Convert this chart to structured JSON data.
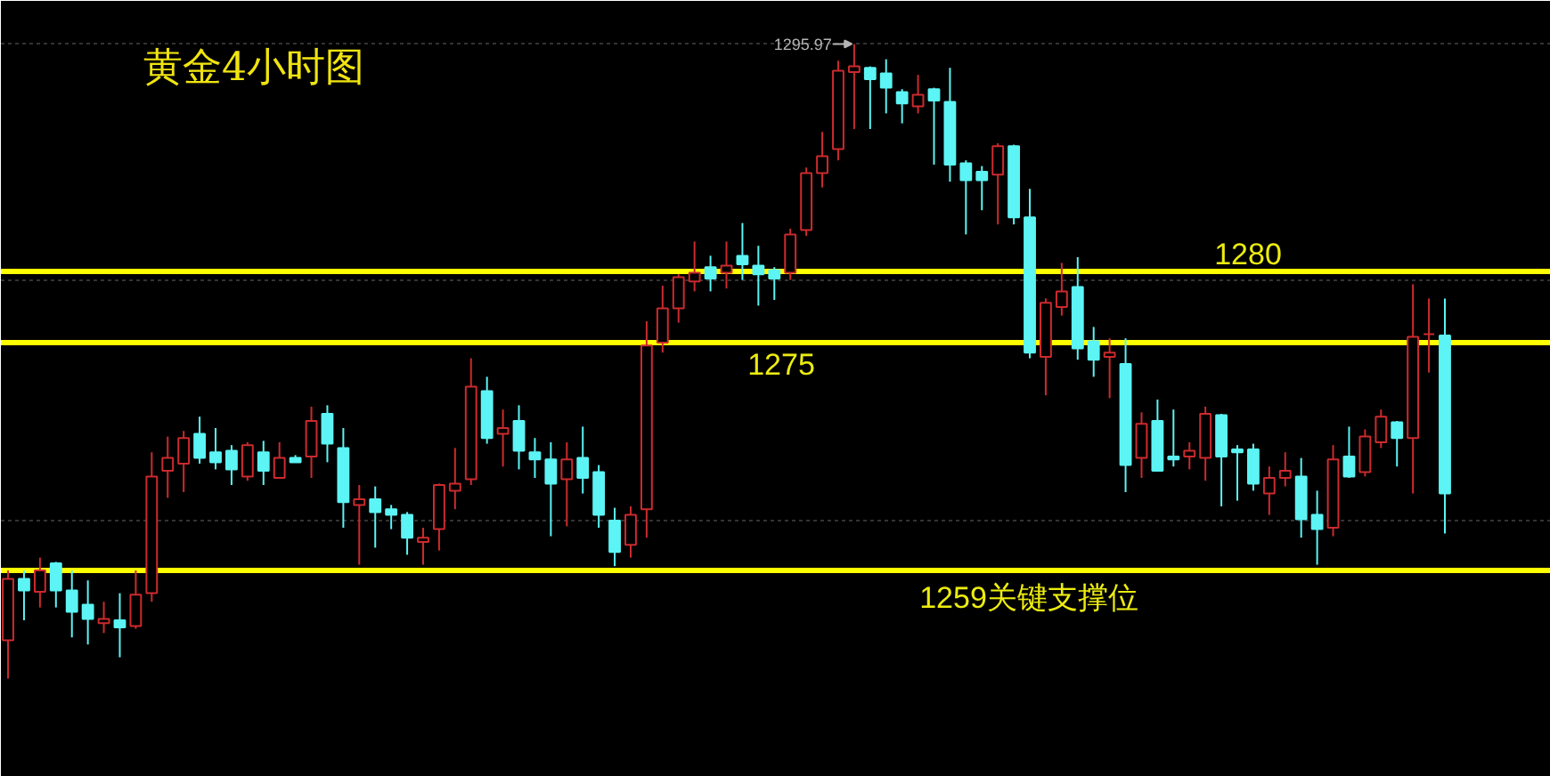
{
  "chart_data": {
    "type": "candlestick",
    "title": "黄金4小时图",
    "categories": [
      null,
      null,
      null,
      null,
      null,
      null,
      null,
      null,
      null,
      null,
      null,
      null,
      null,
      null,
      null,
      null,
      null,
      null,
      null,
      null,
      null,
      null,
      null,
      null,
      null,
      null,
      null,
      null,
      null,
      null,
      null,
      null,
      null,
      null,
      null,
      null,
      null,
      null,
      null,
      null,
      null,
      null,
      null,
      null,
      null,
      null,
      null,
      null,
      null,
      null,
      null,
      null,
      null,
      null,
      null,
      null,
      null,
      null,
      null,
      null,
      null,
      null,
      null,
      null,
      null,
      null,
      null,
      null,
      null,
      null,
      null,
      null,
      null,
      null,
      null,
      null,
      null,
      null,
      null,
      null,
      null,
      null,
      null,
      null,
      null,
      null,
      null,
      null,
      null,
      null,
      null
    ],
    "ohlc": [
      [
        1254.1,
        1259.0,
        1251.4,
        1258.4
      ],
      [
        1258.4,
        1259.0,
        1255.5,
        1257.6
      ],
      [
        1257.5,
        1259.9,
        1256.4,
        1259.0
      ],
      [
        1259.5,
        1259.6,
        1256.4,
        1257.6
      ],
      [
        1257.6,
        1259.0,
        1254.3,
        1256.1
      ],
      [
        1256.6,
        1258.3,
        1253.8,
        1255.6
      ],
      [
        1255.3,
        1256.8,
        1254.6,
        1255.6
      ],
      [
        1255.5,
        1257.4,
        1252.9,
        1255.0
      ],
      [
        1255.1,
        1259.0,
        1254.9,
        1257.3
      ],
      [
        1257.4,
        1267.3,
        1256.8,
        1265.6
      ],
      [
        1266.0,
        1268.4,
        1264.1,
        1266.9
      ],
      [
        1266.5,
        1268.8,
        1264.5,
        1268.3
      ],
      [
        1268.6,
        1269.8,
        1266.5,
        1266.9
      ],
      [
        1267.3,
        1269.0,
        1266.1,
        1266.6
      ],
      [
        1267.4,
        1267.8,
        1265.0,
        1266.1
      ],
      [
        1265.6,
        1268.0,
        1265.3,
        1267.8
      ],
      [
        1267.3,
        1268.1,
        1265.0,
        1266.0
      ],
      [
        1265.5,
        1268.0,
        1265.5,
        1266.9
      ],
      [
        1266.9,
        1267.1,
        1266.6,
        1266.6
      ],
      [
        1267.0,
        1270.5,
        1265.5,
        1269.5
      ],
      [
        1270.0,
        1270.6,
        1266.6,
        1267.9
      ],
      [
        1267.6,
        1269.0,
        1262.0,
        1263.8
      ],
      [
        1263.6,
        1265.0,
        1259.4,
        1264.0
      ],
      [
        1264.0,
        1264.9,
        1260.6,
        1263.1
      ],
      [
        1263.3,
        1263.6,
        1261.9,
        1262.9
      ],
      [
        1262.9,
        1263.1,
        1260.1,
        1261.3
      ],
      [
        1261.0,
        1262.0,
        1259.4,
        1261.3
      ],
      [
        1261.9,
        1265.1,
        1260.4,
        1265.0
      ],
      [
        1264.6,
        1267.6,
        1263.3,
        1265.1
      ],
      [
        1265.4,
        1273.9,
        1265.0,
        1271.9
      ],
      [
        1271.6,
        1272.6,
        1267.9,
        1268.3
      ],
      [
        1268.6,
        1270.3,
        1266.3,
        1269.0
      ],
      [
        1269.5,
        1270.6,
        1266.1,
        1267.4
      ],
      [
        1267.3,
        1268.3,
        1265.5,
        1266.8
      ],
      [
        1266.8,
        1268.0,
        1261.4,
        1265.1
      ],
      [
        1265.4,
        1268.0,
        1262.1,
        1266.8
      ],
      [
        1266.9,
        1269.1,
        1264.4,
        1265.5
      ],
      [
        1265.9,
        1266.4,
        1262.0,
        1262.9
      ],
      [
        1262.5,
        1263.4,
        1259.3,
        1260.3
      ],
      [
        1260.8,
        1263.5,
        1259.9,
        1262.9
      ],
      [
        1263.3,
        1276.5,
        1261.3,
        1274.8
      ],
      [
        1275.0,
        1279.0,
        1274.3,
        1277.4
      ],
      [
        1277.4,
        1279.8,
        1276.4,
        1279.6
      ],
      [
        1279.3,
        1282.1,
        1278.6,
        1279.9
      ],
      [
        1280.3,
        1281.1,
        1278.6,
        1279.5
      ],
      [
        1279.9,
        1282.1,
        1278.8,
        1280.4
      ],
      [
        1281.1,
        1283.4,
        1279.4,
        1280.5
      ],
      [
        1280.4,
        1281.8,
        1277.6,
        1279.8
      ],
      [
        1280.1,
        1280.3,
        1278.0,
        1279.5
      ],
      [
        1279.9,
        1283.0,
        1279.4,
        1282.6
      ],
      [
        1282.9,
        1287.3,
        1282.5,
        1286.9
      ],
      [
        1286.9,
        1289.8,
        1285.9,
        1288.1
      ],
      [
        1288.6,
        1294.8,
        1287.8,
        1294.1
      ],
      [
        1294.0,
        1295.97,
        1290.0,
        1294.4
      ],
      [
        1294.3,
        1294.4,
        1290.0,
        1293.5
      ],
      [
        1293.9,
        1294.9,
        1291.1,
        1292.9
      ],
      [
        1292.6,
        1292.8,
        1290.4,
        1291.8
      ],
      [
        1291.6,
        1293.8,
        1291.1,
        1292.4
      ],
      [
        1292.8,
        1292.9,
        1287.5,
        1292.0
      ],
      [
        1291.9,
        1294.3,
        1286.3,
        1287.5
      ],
      [
        1287.6,
        1287.8,
        1282.6,
        1286.4
      ],
      [
        1287.0,
        1287.4,
        1284.3,
        1286.4
      ],
      [
        1286.8,
        1289.0,
        1283.3,
        1288.8
      ],
      [
        1288.8,
        1288.9,
        1283.3,
        1283.8
      ],
      [
        1283.8,
        1285.8,
        1273.9,
        1274.3
      ],
      [
        1274.0,
        1278.1,
        1271.3,
        1277.8
      ],
      [
        1277.5,
        1280.6,
        1276.9,
        1278.6
      ],
      [
        1278.9,
        1281.0,
        1273.8,
        1274.6
      ],
      [
        1275.1,
        1276.1,
        1272.6,
        1273.8
      ],
      [
        1274.0,
        1275.3,
        1271.1,
        1274.3
      ],
      [
        1273.5,
        1275.3,
        1264.5,
        1266.4
      ],
      [
        1266.9,
        1270.1,
        1265.5,
        1269.3
      ],
      [
        1269.5,
        1271.0,
        1266.0,
        1266.0
      ],
      [
        1267.0,
        1270.3,
        1266.3,
        1266.8
      ],
      [
        1267.0,
        1268.0,
        1266.1,
        1267.4
      ],
      [
        1266.9,
        1270.5,
        1265.3,
        1270.0
      ],
      [
        1269.9,
        1270.0,
        1263.5,
        1267.0
      ],
      [
        1267.5,
        1267.8,
        1263.9,
        1267.3
      ],
      [
        1267.5,
        1267.9,
        1264.6,
        1265.1
      ],
      [
        1264.4,
        1266.3,
        1262.9,
        1265.5
      ],
      [
        1265.5,
        1267.3,
        1264.9,
        1266.0
      ],
      [
        1265.6,
        1266.9,
        1261.3,
        1262.6
      ],
      [
        1262.9,
        1264.6,
        1259.4,
        1261.9
      ],
      [
        1262.0,
        1267.8,
        1261.4,
        1266.8
      ],
      [
        1267.0,
        1269.1,
        1265.5,
        1265.6
      ],
      [
        1265.9,
        1268.9,
        1265.6,
        1268.4
      ],
      [
        1268.0,
        1270.3,
        1267.6,
        1269.8
      ],
      [
        1269.4,
        1269.5,
        1266.3,
        1268.3
      ],
      [
        1268.3,
        1279.1,
        1264.4,
        1275.4
      ],
      [
        1275.6,
        1278.1,
        1272.9,
        1275.6
      ],
      [
        1275.5,
        1278.1,
        1261.6,
        1264.4
      ]
    ],
    "colors": [
      "#cc2a2e",
      "#5cf4f4",
      "#cc2a2e",
      "#5cf4f4",
      "#5cf4f4",
      "#5cf4f4",
      "#cc2a2e",
      "#5cf4f4",
      "#cc2a2e",
      "#cc2a2e",
      "#cc2a2e",
      "#cc2a2e",
      "#5cf4f4",
      "#5cf4f4",
      "#5cf4f4",
      "#cc2a2e",
      "#5cf4f4",
      "#cc2a2e",
      "#5cf4f4",
      "#cc2a2e",
      "#5cf4f4",
      "#5cf4f4",
      "#cc2a2e",
      "#5cf4f4",
      "#5cf4f4",
      "#5cf4f4",
      "#cc2a2e",
      "#cc2a2e",
      "#cc2a2e",
      "#cc2a2e",
      "#5cf4f4",
      "#cc2a2e",
      "#5cf4f4",
      "#5cf4f4",
      "#5cf4f4",
      "#cc2a2e",
      "#5cf4f4",
      "#5cf4f4",
      "#5cf4f4",
      "#cc2a2e",
      "#cc2a2e",
      "#cc2a2e",
      "#cc2a2e",
      "#cc2a2e",
      "#5cf4f4",
      "#cc2a2e",
      "#5cf4f4",
      "#5cf4f4",
      "#5cf4f4",
      "#cc2a2e",
      "#cc2a2e",
      "#cc2a2e",
      "#cc2a2e",
      "#cc2a2e",
      "#5cf4f4",
      "#5cf4f4",
      "#5cf4f4",
      "#cc2a2e",
      "#5cf4f4",
      "#5cf4f4",
      "#5cf4f4",
      "#5cf4f4",
      "#cc2a2e",
      "#5cf4f4",
      "#5cf4f4",
      "#cc2a2e",
      "#cc2a2e",
      "#5cf4f4",
      "#5cf4f4",
      "#cc2a2e",
      "#5cf4f4",
      "#cc2a2e",
      "#5cf4f4",
      "#5cf4f4",
      "#cc2a2e",
      "#cc2a2e",
      "#5cf4f4",
      "#5cf4f4",
      "#5cf4f4",
      "#cc2a2e",
      "#cc2a2e",
      "#5cf4f4",
      "#5cf4f4",
      "#cc2a2e",
      "#5cf4f4",
      "#cc2a2e",
      "#cc2a2e",
      "#5cf4f4",
      "#cc2a2e",
      "#cc2a2e",
      "#5cf4f4"
    ],
    "ylim": [
      1244.5,
      1299
    ],
    "yticks": [
      {
        "value": 1262.5,
        "label": null
      },
      {
        "value": 1279.4,
        "label": null
      },
      {
        "value": 1296,
        "label": null
      }
    ],
    "grid": "y",
    "tick_labels": false,
    "ref_lines": [
      {
        "axis": "y",
        "value": 1280,
        "label": "1280",
        "color": "#ffff00"
      },
      {
        "axis": "y",
        "value": 1275,
        "label": "1275",
        "color": "#ffff00"
      },
      {
        "axis": "y",
        "value": 1259,
        "label": "1259关键支撑位",
        "color": "#ffff00"
      }
    ],
    "annotations": [
      "1295.97"
    ]
  }
}
